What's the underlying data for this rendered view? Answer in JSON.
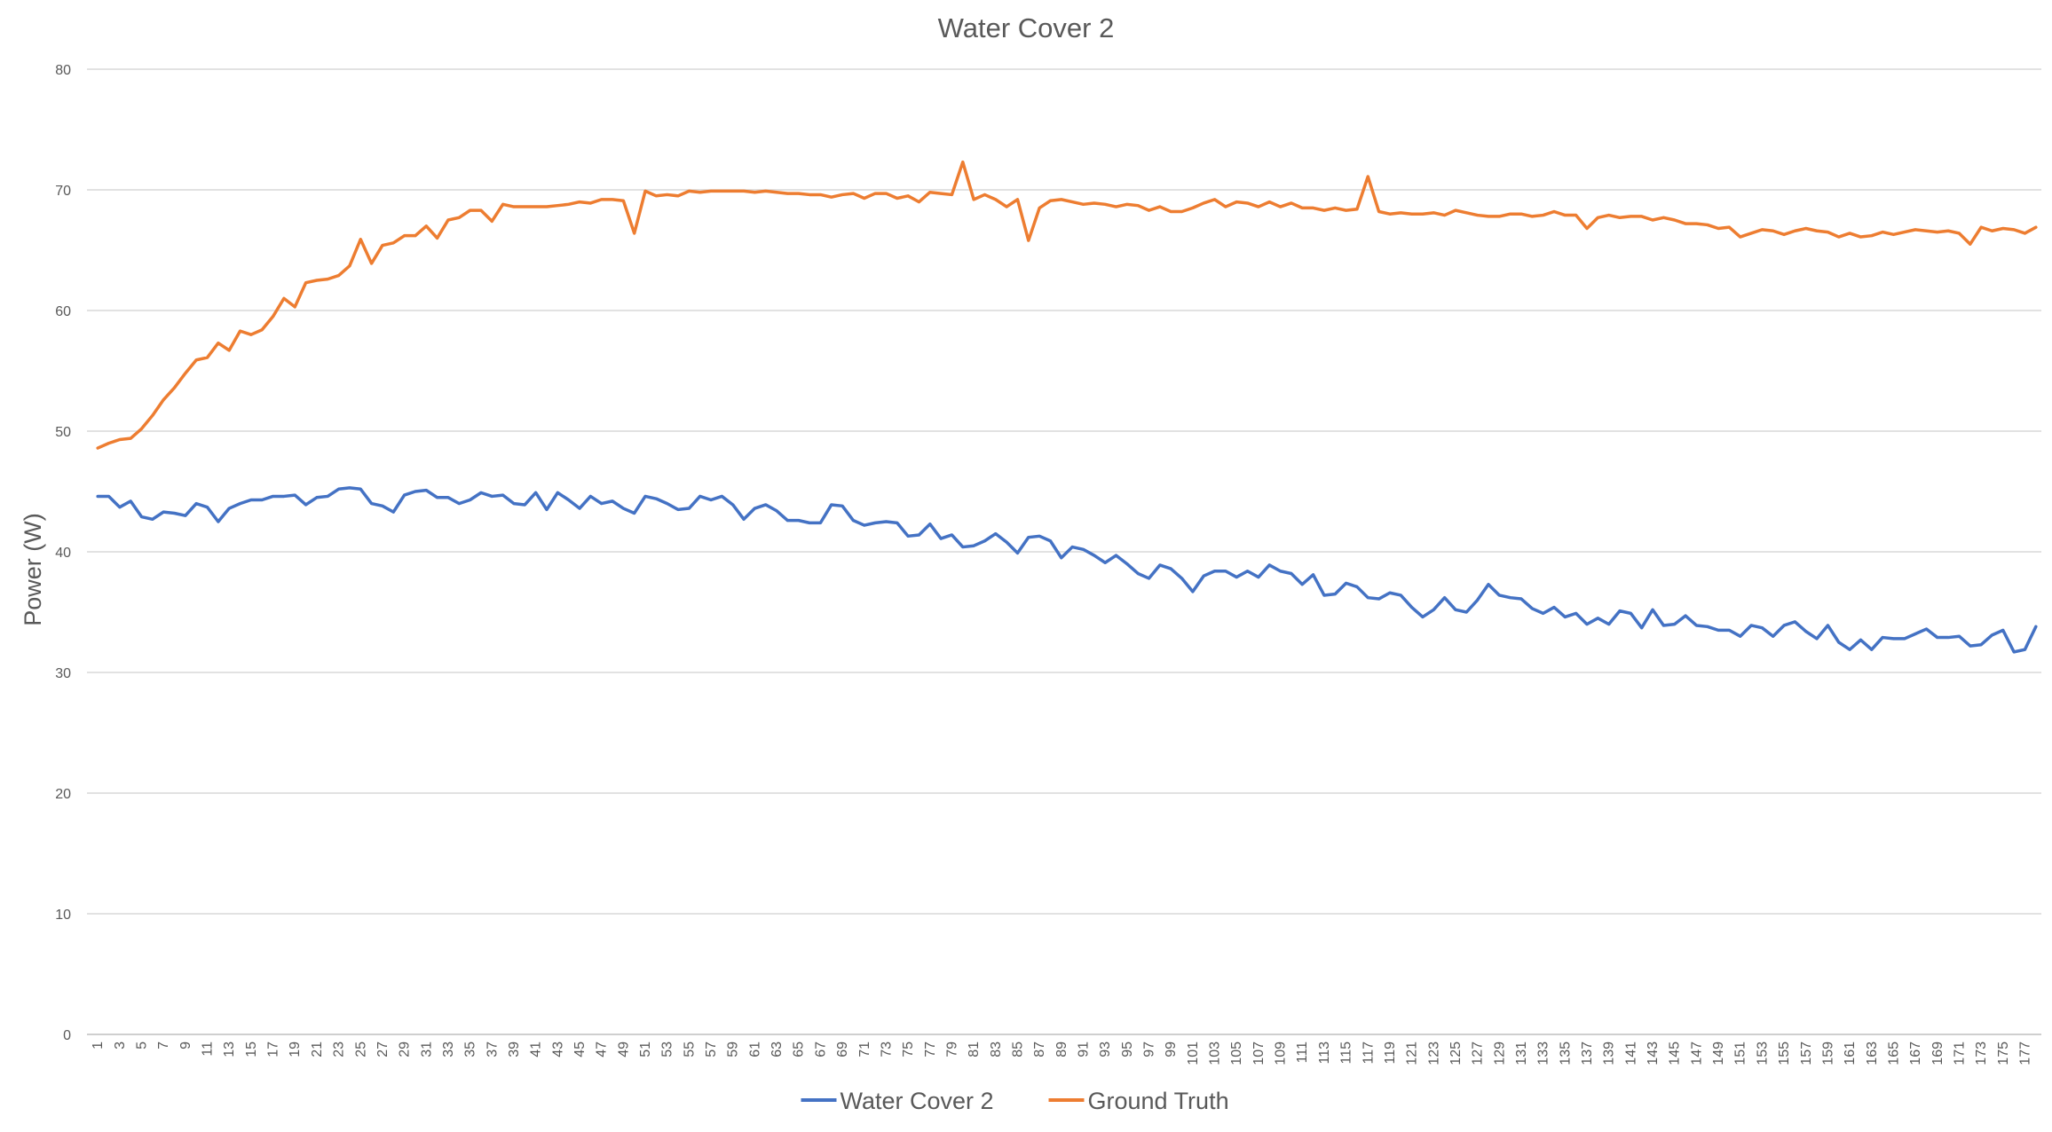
{
  "chart_data": {
    "type": "line",
    "title": "Water Cover 2",
    "xlabel": "",
    "ylabel": "Power (W)",
    "ylim": [
      0,
      80
    ],
    "yticks": [
      0,
      10,
      20,
      30,
      40,
      50,
      60,
      70,
      80
    ],
    "grid": true,
    "legend_position": "bottom",
    "x_start": 1,
    "x_end": 178,
    "x_tick_step": 2,
    "series": [
      {
        "name": "Water Cover 2",
        "color": "#4472C4",
        "values": [
          44.6,
          44.6,
          43.7,
          44.2,
          42.9,
          42.7,
          43.3,
          43.2,
          43.0,
          44.0,
          43.7,
          42.5,
          43.6,
          44.0,
          44.3,
          44.3,
          44.6,
          44.6,
          44.7,
          43.9,
          44.5,
          44.6,
          45.2,
          45.3,
          45.2,
          44.0,
          43.8,
          43.3,
          44.7,
          45.0,
          45.1,
          44.5,
          44.5,
          44.0,
          44.3,
          44.9,
          44.6,
          44.7,
          44.0,
          43.9,
          44.9,
          43.5,
          44.9,
          44.3,
          43.6,
          44.6,
          44.0,
          44.2,
          43.6,
          43.2,
          44.6,
          44.4,
          44.0,
          43.5,
          43.6,
          44.6,
          44.3,
          44.6,
          43.9,
          42.7,
          43.6,
          43.9,
          43.4,
          42.6,
          42.6,
          42.4,
          42.4,
          43.9,
          43.8,
          42.6,
          42.2,
          42.4,
          42.5,
          42.4,
          41.3,
          41.4,
          42.3,
          41.1,
          41.4,
          40.4,
          40.5,
          40.9,
          41.5,
          40.8,
          39.9,
          41.2,
          41.3,
          40.9,
          39.5,
          40.4,
          40.2,
          39.7,
          39.1,
          39.7,
          39.0,
          38.2,
          37.8,
          38.9,
          38.6,
          37.8,
          36.7,
          38.0,
          38.4,
          38.4,
          37.9,
          38.4,
          37.9,
          38.9,
          38.4,
          38.2,
          37.3,
          38.1,
          36.4,
          36.5,
          37.4,
          37.1,
          36.2,
          36.1,
          36.6,
          36.4,
          35.4,
          34.6,
          35.2,
          36.2,
          35.2,
          35.0,
          36.0,
          37.3,
          36.4,
          36.2,
          36.1,
          35.3,
          34.9,
          35.4,
          34.6,
          34.9,
          34.0,
          34.5,
          34.0,
          35.1,
          34.9,
          33.7,
          35.2,
          33.9,
          34.0,
          34.7,
          33.9,
          33.8,
          33.5,
          33.5,
          33.0,
          33.9,
          33.7,
          33.0,
          33.9,
          34.2,
          33.4,
          32.8,
          33.9,
          32.5,
          31.9,
          32.7,
          31.9,
          32.9,
          32.8,
          32.8,
          33.2,
          33.6,
          32.9,
          32.9,
          33.0,
          32.2,
          32.3,
          33.1,
          33.5,
          31.7,
          31.9,
          33.8
        ]
      },
      {
        "name": "Ground Truth",
        "color": "#ED7D31",
        "values": [
          48.6,
          49.0,
          49.3,
          49.4,
          50.2,
          51.3,
          52.6,
          53.6,
          54.8,
          55.9,
          56.1,
          57.3,
          56.7,
          58.3,
          58.0,
          58.4,
          59.5,
          61.0,
          60.3,
          62.3,
          62.5,
          62.6,
          62.9,
          63.7,
          65.9,
          63.9,
          65.4,
          65.6,
          66.2,
          66.2,
          67.0,
          66.0,
          67.5,
          67.7,
          68.3,
          68.3,
          67.4,
          68.8,
          68.6,
          68.6,
          68.6,
          68.6,
          68.7,
          68.8,
          69.0,
          68.9,
          69.2,
          69.2,
          69.1,
          66.4,
          69.9,
          69.5,
          69.6,
          69.5,
          69.9,
          69.8,
          69.9,
          69.9,
          69.9,
          69.9,
          69.8,
          69.9,
          69.8,
          69.7,
          69.7,
          69.6,
          69.6,
          69.4,
          69.6,
          69.7,
          69.3,
          69.7,
          69.7,
          69.3,
          69.5,
          69.0,
          69.8,
          69.7,
          69.6,
          72.3,
          69.2,
          69.6,
          69.2,
          68.6,
          69.2,
          65.8,
          68.5,
          69.1,
          69.2,
          69.0,
          68.8,
          68.9,
          68.8,
          68.6,
          68.8,
          68.7,
          68.3,
          68.6,
          68.2,
          68.2,
          68.5,
          68.9,
          69.2,
          68.6,
          69.0,
          68.9,
          68.6,
          69.0,
          68.6,
          68.9,
          68.5,
          68.5,
          68.3,
          68.5,
          68.3,
          68.4,
          71.1,
          68.2,
          68.0,
          68.1,
          68.0,
          68.0,
          68.1,
          67.9,
          68.3,
          68.1,
          67.9,
          67.8,
          67.8,
          68.0,
          68.0,
          67.8,
          67.9,
          68.2,
          67.9,
          67.9,
          66.8,
          67.7,
          67.9,
          67.7,
          67.8,
          67.8,
          67.5,
          67.7,
          67.5,
          67.2,
          67.2,
          67.1,
          66.8,
          66.9,
          66.1,
          66.4,
          66.7,
          66.6,
          66.3,
          66.6,
          66.8,
          66.6,
          66.5,
          66.1,
          66.4,
          66.1,
          66.2,
          66.5,
          66.3,
          66.5,
          66.7,
          66.6,
          66.5,
          66.6,
          66.4,
          65.5,
          66.9,
          66.6,
          66.8,
          66.7,
          66.4,
          66.9
        ]
      }
    ]
  }
}
